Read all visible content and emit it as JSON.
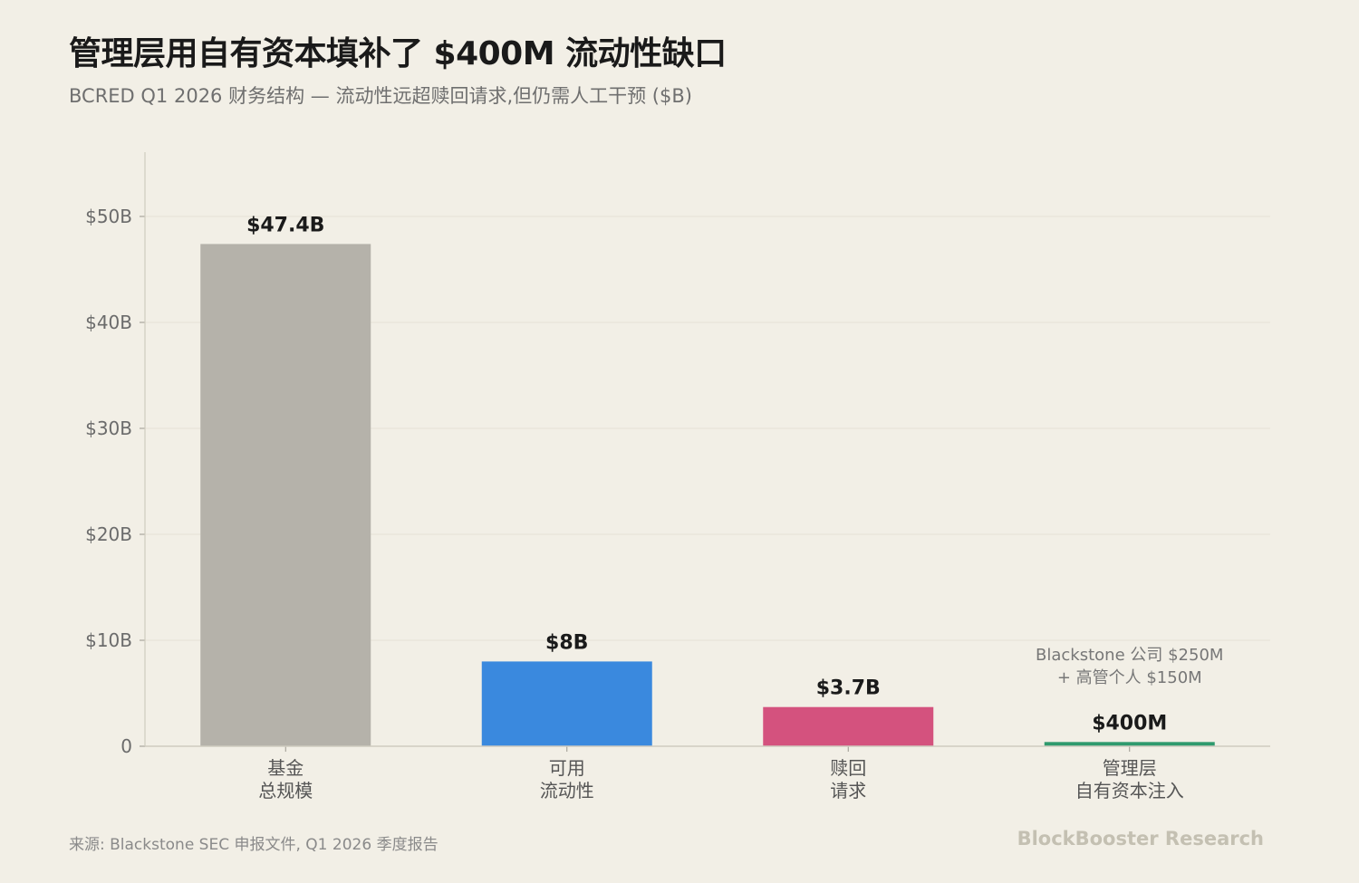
{
  "title": "管理层用自有资本填补了 $400M 流动性缺口",
  "subtitle": "BCRED Q1 2026 财务结构 — 流动性远超赎回请求,但仍需人工干预 ($B)",
  "source": "来源: Blackstone SEC 申报文件, Q1 2026 季度报告",
  "brand": "BlockBooster Research",
  "chart_data": {
    "type": "bar",
    "categories": [
      [
        "基金",
        "总规模"
      ],
      [
        "可用",
        "流动性"
      ],
      [
        "赎回",
        "请求"
      ],
      [
        "管理层",
        "自有资本注入"
      ]
    ],
    "values": [
      47.4,
      8,
      3.7,
      0.4
    ],
    "value_labels": [
      "$47.4B",
      "$8B",
      "$3.7B",
      "$400M"
    ],
    "colors": [
      "#b5b2aa",
      "#3a89de",
      "#d4527e",
      "#2f9a6e"
    ],
    "yticks": [
      0,
      10,
      20,
      30,
      40,
      50
    ],
    "ytick_labels": [
      "0",
      "$10B",
      "$20B",
      "$30B",
      "$40B",
      "$50B"
    ],
    "ylim": [
      0,
      56
    ],
    "grid": true,
    "annotation": {
      "category_index": 3,
      "lines": [
        "Blackstone 公司 $250M",
        "+ 高管个人 $150M"
      ]
    }
  }
}
